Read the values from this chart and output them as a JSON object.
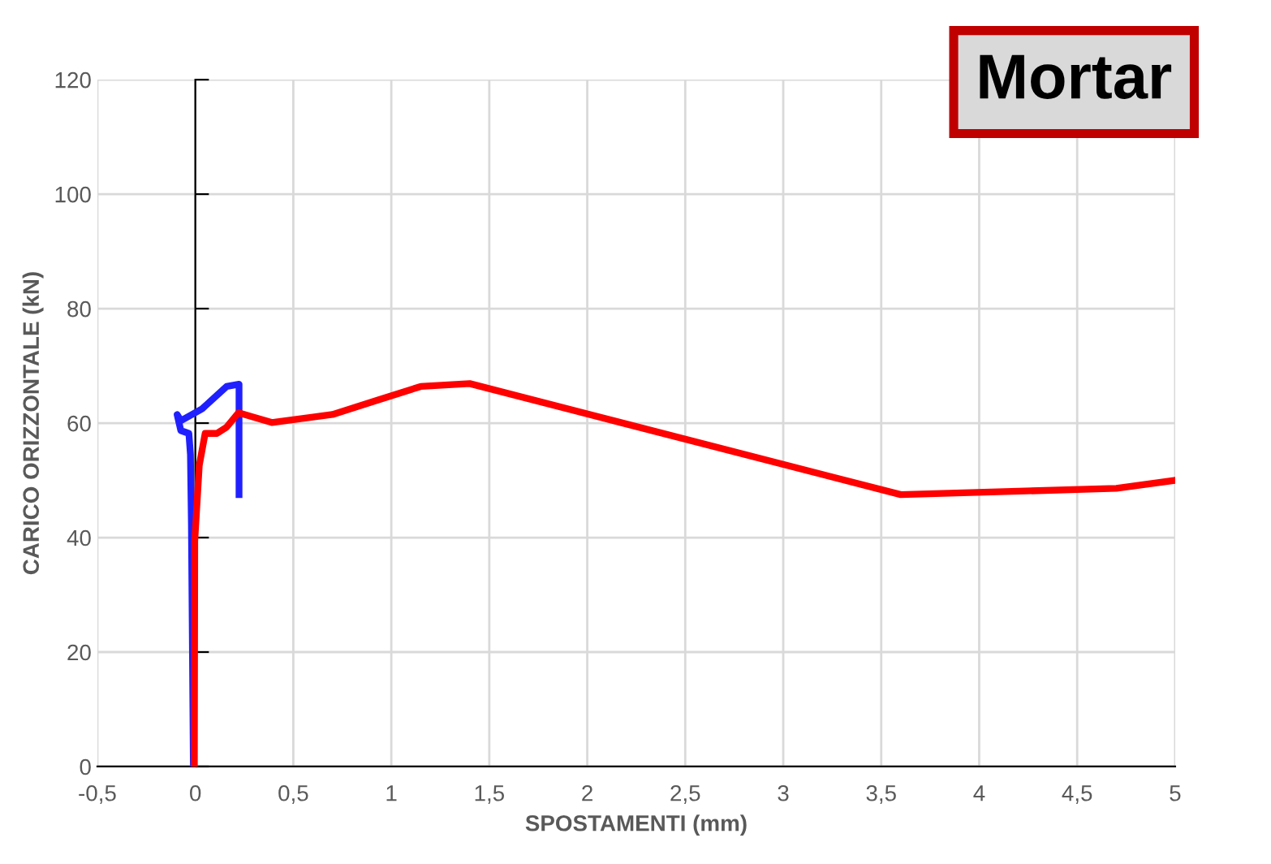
{
  "chart_data": {
    "type": "line",
    "title": "Mortar",
    "xlabel": "SPOSTAMENTI (mm)",
    "ylabel": "CARICO ORIZZONTALE (kN)",
    "xlim": [
      -0.5,
      5
    ],
    "xticks": [
      {
        "value": -0.5,
        "label": "-0,5"
      },
      0,
      {
        "value": 0.5,
        "label": "0,5"
      },
      1,
      {
        "value": 1.5,
        "label": "1,5"
      },
      2,
      {
        "value": 2.5,
        "label": "2,5"
      },
      3,
      {
        "value": 3.5,
        "label": "3,5"
      },
      4,
      {
        "value": 4.5,
        "label": "4,5"
      },
      5
    ],
    "ylim": [
      0,
      120
    ],
    "yticks": [
      0,
      20,
      40,
      60,
      80,
      100,
      120
    ],
    "grid": true,
    "marker": "none",
    "line_style": "solid",
    "series": [
      {
        "color": "#2020ff",
        "x": [
          -0.01,
          -0.02,
          -0.025,
          -0.033,
          -0.074,
          -0.093,
          -0.074,
          0.035,
          0.16,
          0.223,
          0.223
        ],
        "values": [
          0,
          42.3,
          54.5,
          58.2,
          58.7,
          61.5,
          60.4,
          62.5,
          66.4,
          66.8,
          47.5
        ]
      },
      {
        "color": "#ff0000",
        "x": [
          -0.005,
          -0.003,
          0.02,
          0.05,
          0.11,
          0.16,
          0.22,
          0.39,
          0.7,
          0.93,
          1.15,
          1.4,
          3.6,
          4.7,
          5.0
        ],
        "values": [
          0,
          39.4,
          52.6,
          58.2,
          58.2,
          59.3,
          61.8,
          60.1,
          61.5,
          64.0,
          66.4,
          66.9,
          47.5,
          48.6,
          50.0
        ]
      }
    ]
  }
}
